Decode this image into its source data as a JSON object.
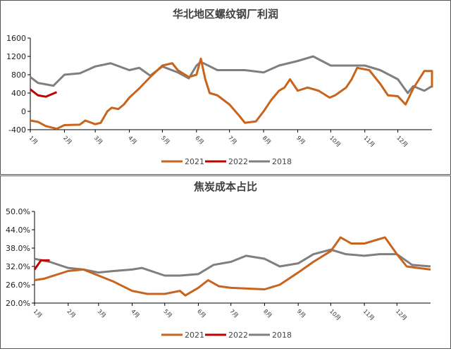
{
  "chart_data": [
    {
      "type": "line",
      "title": "华北地区螺纹钢厂利润",
      "ylim": [
        -400,
        1600
      ],
      "yticks": [
        "1600",
        "1200",
        "800",
        "400",
        "0",
        "-400"
      ],
      "xticks": [
        "1月",
        "2月",
        "3月",
        "4月",
        "5月",
        "6月",
        "7月",
        "8月",
        "9月",
        "10月",
        "11月",
        "12月"
      ],
      "legend": "bottom",
      "grid": false,
      "series": [
        {
          "name": "2021",
          "color": "#C8641E",
          "points": [
            [
              "01-01",
              -200
            ],
            [
              "01-08",
              -230
            ],
            [
              "01-15",
              -320
            ],
            [
              "01-25",
              -380
            ],
            [
              "02-01",
              -300
            ],
            [
              "02-15",
              -290
            ],
            [
              "02-20",
              -200
            ],
            [
              "03-01",
              -280
            ],
            [
              "03-06",
              -250
            ],
            [
              "03-12",
              0
            ],
            [
              "03-16",
              80
            ],
            [
              "03-22",
              50
            ],
            [
              "03-27",
              150
            ],
            [
              "04-01",
              300
            ],
            [
              "04-10",
              500
            ],
            [
              "04-20",
              750
            ],
            [
              "05-01",
              1000
            ],
            [
              "05-10",
              1050
            ],
            [
              "05-15",
              900
            ],
            [
              "05-25",
              750
            ],
            [
              "06-01",
              800
            ],
            [
              "06-05",
              1150
            ],
            [
              "06-09",
              700
            ],
            [
              "06-13",
              400
            ],
            [
              "06-20",
              350
            ],
            [
              "07-01",
              150
            ],
            [
              "07-10",
              -100
            ],
            [
              "07-15",
              -250
            ],
            [
              "07-25",
              -220
            ],
            [
              "08-01",
              0
            ],
            [
              "08-08",
              250
            ],
            [
              "08-15",
              450
            ],
            [
              "08-20",
              520
            ],
            [
              "08-25",
              700
            ],
            [
              "09-01",
              450
            ],
            [
              "09-10",
              520
            ],
            [
              "09-20",
              450
            ],
            [
              "09-30",
              300
            ],
            [
              "10-05",
              350
            ],
            [
              "10-15",
              520
            ],
            [
              "10-20",
              700
            ],
            [
              "10-25",
              950
            ],
            [
              "11-05",
              900
            ],
            [
              "11-15",
              600
            ],
            [
              "11-22",
              350
            ],
            [
              "12-01",
              330
            ],
            [
              "12-08",
              150
            ],
            [
              "12-15",
              500
            ],
            [
              "12-25",
              880
            ],
            [
              "01-05",
              880
            ],
            [
              "01-15",
              700
            ],
            [
              "01-25",
              600
            ],
            [
              "01-31",
              520
            ]
          ]
        },
        {
          "name": "2022",
          "color": "#C00000",
          "points": [
            [
              "01-01",
              480
            ],
            [
              "01-08",
              350
            ],
            [
              "01-15",
              320
            ],
            [
              "01-25",
              420
            ]
          ]
        },
        {
          "name": "2018",
          "color": "#7F7F7F",
          "points": [
            [
              "01-01",
              750
            ],
            [
              "01-08",
              620
            ],
            [
              "01-22",
              560
            ],
            [
              "02-01",
              800
            ],
            [
              "02-15",
              830
            ],
            [
              "03-01",
              980
            ],
            [
              "03-15",
              1050
            ],
            [
              "04-01",
              900
            ],
            [
              "04-10",
              950
            ],
            [
              "04-20",
              780
            ],
            [
              "05-01",
              980
            ],
            [
              "05-15",
              850
            ],
            [
              "05-25",
              720
            ],
            [
              "06-01",
              1000
            ],
            [
              "06-05",
              1080
            ],
            [
              "06-20",
              900
            ],
            [
              "07-01",
              900
            ],
            [
              "07-15",
              900
            ],
            [
              "08-01",
              850
            ],
            [
              "08-15",
              1000
            ],
            [
              "09-01",
              1100
            ],
            [
              "09-15",
              1200
            ],
            [
              "10-01",
              1000
            ],
            [
              "10-15",
              1000
            ],
            [
              "11-01",
              1000
            ],
            [
              "11-15",
              900
            ],
            [
              "12-01",
              700
            ],
            [
              "12-10",
              400
            ],
            [
              "12-15",
              550
            ],
            [
              "12-25",
              450
            ],
            [
              "01-31",
              550
            ]
          ]
        }
      ]
    },
    {
      "type": "line",
      "title": "焦炭成本占比",
      "ylim": [
        20,
        50
      ],
      "yticks": [
        "50.0%",
        "44.0%",
        "38.0%",
        "32.0%",
        "26.0%",
        "20.0%"
      ],
      "xticks": [
        "1月",
        "2月",
        "3月",
        "4月",
        "5月",
        "6月",
        "7月",
        "8月",
        "9月",
        "10月",
        "11月",
        "12月"
      ],
      "legend": "bottom",
      "grid": false,
      "series": [
        {
          "name": "2021",
          "color": "#C8641E",
          "points": [
            [
              "01-01",
              27.5
            ],
            [
              "01-10",
              28
            ],
            [
              "02-01",
              30.5
            ],
            [
              "02-15",
              31
            ],
            [
              "03-01",
              29
            ],
            [
              "03-15",
              27
            ],
            [
              "04-01",
              24
            ],
            [
              "04-15",
              23
            ],
            [
              "05-01",
              23
            ],
            [
              "05-15",
              24
            ],
            [
              "05-20",
              22.5
            ],
            [
              "06-01",
              25
            ],
            [
              "06-10",
              27.5
            ],
            [
              "06-20",
              25.5
            ],
            [
              "07-01",
              25
            ],
            [
              "08-01",
              24.5
            ],
            [
              "08-15",
              26
            ],
            [
              "09-01",
              30
            ],
            [
              "09-15",
              33.5
            ],
            [
              "10-01",
              37
            ],
            [
              "10-10",
              41.5
            ],
            [
              "10-20",
              39.5
            ],
            [
              "11-01",
              39.5
            ],
            [
              "11-20",
              41.5
            ],
            [
              "12-01",
              36
            ],
            [
              "12-10",
              32
            ],
            [
              "12-20",
              31.5
            ],
            [
              "01-31",
              31
            ]
          ]
        },
        {
          "name": "2022",
          "color": "#C00000",
          "points": [
            [
              "01-01",
              31
            ],
            [
              "01-07",
              34
            ],
            [
              "01-15",
              34
            ]
          ]
        },
        {
          "name": "2018",
          "color": "#7F7F7F",
          "points": [
            [
              "01-01",
              34.5
            ],
            [
              "01-15",
              33.5
            ],
            [
              "02-01",
              31.5
            ],
            [
              "02-15",
              31
            ],
            [
              "03-01",
              30
            ],
            [
              "03-15",
              30.5
            ],
            [
              "04-01",
              31
            ],
            [
              "04-10",
              31.5
            ],
            [
              "05-01",
              29
            ],
            [
              "05-15",
              29
            ],
            [
              "06-01",
              29.5
            ],
            [
              "06-15",
              32.5
            ],
            [
              "07-01",
              33.5
            ],
            [
              "07-15",
              35.5
            ],
            [
              "08-01",
              34.5
            ],
            [
              "08-15",
              32
            ],
            [
              "09-01",
              33
            ],
            [
              "09-15",
              36
            ],
            [
              "10-01",
              37.5
            ],
            [
              "10-15",
              36
            ],
            [
              "11-01",
              35.5
            ],
            [
              "11-15",
              36
            ],
            [
              "12-01",
              36
            ],
            [
              "12-15",
              32.5
            ],
            [
              "01-31",
              32
            ]
          ]
        }
      ]
    }
  ]
}
